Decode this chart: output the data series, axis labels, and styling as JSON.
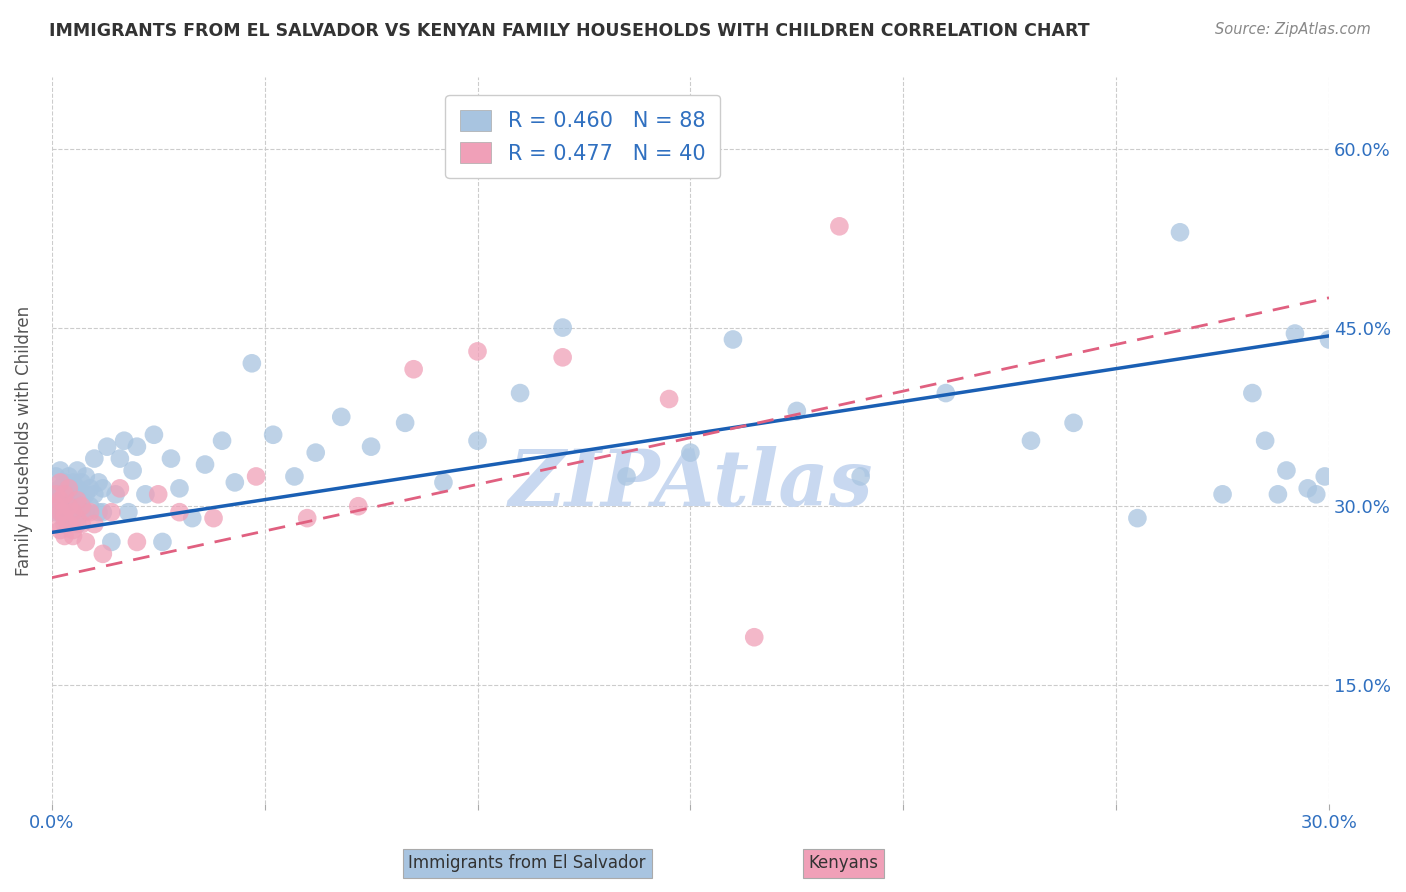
{
  "title": "IMMIGRANTS FROM EL SALVADOR VS KENYAN FAMILY HOUSEHOLDS WITH CHILDREN CORRELATION CHART",
  "source": "Source: ZipAtlas.com",
  "ylabel": "Family Households with Children",
  "r_salvador": 0.46,
  "n_salvador": 88,
  "r_kenyan": 0.477,
  "n_kenyan": 40,
  "xlim": [
    0.0,
    0.3
  ],
  "ylim": [
    0.05,
    0.66
  ],
  "yticks": [
    0.15,
    0.3,
    0.45,
    0.6
  ],
  "xticks": [
    0.0,
    0.05,
    0.1,
    0.15,
    0.2,
    0.25,
    0.3
  ],
  "ytick_labels": [
    "15.0%",
    "30.0%",
    "45.0%",
    "60.0%"
  ],
  "color_salvador": "#a8c4e0",
  "color_kenyan": "#f0a0b8",
  "line_color_salvador": "#1a5fb4",
  "line_color_kenyan": "#e06080",
  "background_color": "#ffffff",
  "grid_color": "#cccccc",
  "title_color": "#333333",
  "axis_label_color": "#3070c0",
  "legend_r_color": "#3070c0",
  "legend_n_color": "#3070c0",
  "salvador_points_x": [
    0.001,
    0.001,
    0.001,
    0.002,
    0.002,
    0.002,
    0.002,
    0.002,
    0.003,
    0.003,
    0.003,
    0.003,
    0.003,
    0.004,
    0.004,
    0.004,
    0.004,
    0.004,
    0.005,
    0.005,
    0.005,
    0.005,
    0.006,
    0.006,
    0.006,
    0.006,
    0.007,
    0.007,
    0.007,
    0.008,
    0.008,
    0.008,
    0.009,
    0.009,
    0.01,
    0.01,
    0.011,
    0.011,
    0.012,
    0.012,
    0.013,
    0.014,
    0.015,
    0.016,
    0.017,
    0.018,
    0.019,
    0.02,
    0.022,
    0.024,
    0.026,
    0.028,
    0.03,
    0.033,
    0.036,
    0.04,
    0.043,
    0.047,
    0.052,
    0.057,
    0.062,
    0.068,
    0.075,
    0.083,
    0.092,
    0.1,
    0.11,
    0.12,
    0.135,
    0.15,
    0.16,
    0.175,
    0.19,
    0.21,
    0.23,
    0.24,
    0.255,
    0.265,
    0.275,
    0.282,
    0.285,
    0.288,
    0.29,
    0.292,
    0.295,
    0.297,
    0.299,
    0.3
  ],
  "salvador_points_y": [
    0.31,
    0.295,
    0.325,
    0.3,
    0.315,
    0.295,
    0.31,
    0.33,
    0.295,
    0.31,
    0.32,
    0.305,
    0.285,
    0.3,
    0.315,
    0.295,
    0.31,
    0.325,
    0.29,
    0.305,
    0.32,
    0.295,
    0.3,
    0.315,
    0.33,
    0.285,
    0.305,
    0.32,
    0.295,
    0.31,
    0.325,
    0.295,
    0.3,
    0.315,
    0.31,
    0.34,
    0.295,
    0.32,
    0.295,
    0.315,
    0.35,
    0.27,
    0.31,
    0.34,
    0.355,
    0.295,
    0.33,
    0.35,
    0.31,
    0.36,
    0.27,
    0.34,
    0.315,
    0.29,
    0.335,
    0.355,
    0.32,
    0.42,
    0.36,
    0.325,
    0.345,
    0.375,
    0.35,
    0.37,
    0.32,
    0.355,
    0.395,
    0.45,
    0.325,
    0.345,
    0.44,
    0.38,
    0.325,
    0.395,
    0.355,
    0.37,
    0.29,
    0.53,
    0.31,
    0.395,
    0.355,
    0.31,
    0.33,
    0.445,
    0.315,
    0.31,
    0.325,
    0.44
  ],
  "kenyan_points_x": [
    0.001,
    0.001,
    0.001,
    0.002,
    0.002,
    0.002,
    0.002,
    0.003,
    0.003,
    0.003,
    0.003,
    0.004,
    0.004,
    0.004,
    0.005,
    0.005,
    0.005,
    0.006,
    0.006,
    0.007,
    0.007,
    0.008,
    0.009,
    0.01,
    0.012,
    0.014,
    0.016,
    0.02,
    0.025,
    0.03,
    0.038,
    0.048,
    0.06,
    0.072,
    0.085,
    0.1,
    0.12,
    0.145,
    0.165,
    0.185
  ],
  "kenyan_points_y": [
    0.3,
    0.285,
    0.31,
    0.295,
    0.32,
    0.28,
    0.305,
    0.29,
    0.31,
    0.275,
    0.295,
    0.285,
    0.3,
    0.315,
    0.275,
    0.295,
    0.28,
    0.29,
    0.305,
    0.285,
    0.3,
    0.27,
    0.295,
    0.285,
    0.26,
    0.295,
    0.315,
    0.27,
    0.31,
    0.295,
    0.29,
    0.325,
    0.29,
    0.3,
    0.415,
    0.43,
    0.425,
    0.39,
    0.19,
    0.535
  ],
  "watermark": "ZIPAtlas",
  "watermark_color": "#c8d8f0",
  "figsize": [
    14.06,
    8.92
  ],
  "dpi": 100
}
